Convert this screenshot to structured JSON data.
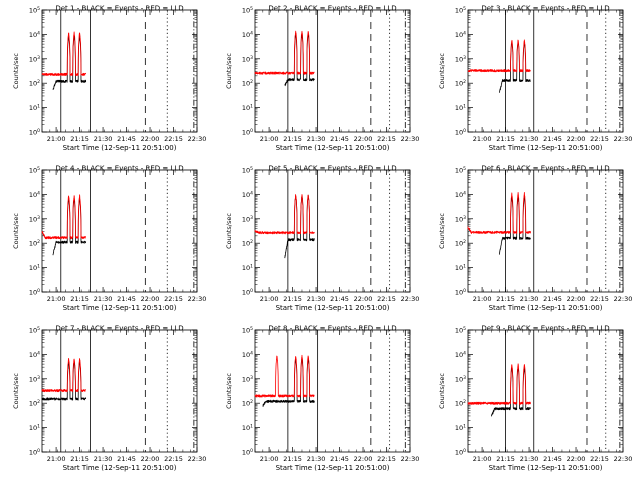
{
  "colors": {
    "events": "#000000",
    "lld": "#ff0000",
    "axes": "#000000",
    "background": "#ffffff"
  },
  "chart_data": [
    {
      "type": "line",
      "detector": 1,
      "title": "Det 1 - BLACK = Events - RED = LLD",
      "xlabel": "Start Time (12-Sep-11 20:51:00)",
      "ylabel": "Counts/sec",
      "x_tick_labels": [
        "21:00",
        "21:15",
        "21:30",
        "21:45",
        "22:00",
        "22:15",
        "22:30"
      ],
      "x_range_minutes": [
        0,
        99
      ],
      "y_scale": "log",
      "ylim": [
        1,
        100000
      ],
      "y_tick_labels": [
        "10^0",
        "10^1",
        "10^2",
        "10^3",
        "10^4",
        "10^5"
      ],
      "vertical_lines": [
        {
          "minute": 12,
          "style": "solid"
        },
        {
          "minute": 31,
          "style": "solid"
        },
        {
          "minute": 66,
          "style": "dashed"
        },
        {
          "minute": 80,
          "style": "dotted"
        },
        {
          "minute": 97,
          "style": "dash-dot"
        }
      ],
      "series": [
        {
          "name": "Events",
          "color": "#000000",
          "start": 7,
          "end": 28,
          "base": 120,
          "first": 55,
          "peaks": [
            17,
            20.5,
            24
          ],
          "peak_height": 9000
        },
        {
          "name": "LLD",
          "color": "#ff0000",
          "start": 0,
          "end": 28,
          "base": 230,
          "first": 230,
          "peaks": [
            17,
            20.5,
            24
          ],
          "peak_height": 12000
        }
      ]
    },
    {
      "type": "line",
      "detector": 2,
      "title": "Det 2 - BLACK = Events - RED = LLD",
      "xlabel": "Start Time (12-Sep-11 20:51:00)",
      "ylabel": "Counts/sec",
      "x_tick_labels": [
        "21:00",
        "21:15",
        "21:30",
        "21:45",
        "22:00",
        "22:15",
        "22:30"
      ],
      "x_range_minutes": [
        0,
        99
      ],
      "y_scale": "log",
      "ylim": [
        1,
        100000
      ],
      "y_tick_labels": [
        "10^0",
        "10^1",
        "10^2",
        "10^3",
        "10^4",
        "10^5"
      ],
      "vertical_lines": [
        {
          "minute": 21,
          "style": "solid"
        },
        {
          "minute": 40,
          "style": "solid"
        },
        {
          "minute": 74,
          "style": "dashed"
        },
        {
          "minute": 86,
          "style": "dotted"
        },
        {
          "minute": 96,
          "style": "dash-dot"
        }
      ],
      "series": [
        {
          "name": "Events",
          "color": "#000000",
          "start": 19,
          "end": 38,
          "base": 140,
          "first": 80,
          "peaks": [
            26,
            30,
            34
          ],
          "peak_height": 11000
        },
        {
          "name": "LLD",
          "color": "#ff0000",
          "start": 0,
          "end": 38,
          "base": 260,
          "first": 260,
          "peaks": [
            26,
            30,
            34
          ],
          "peak_height": 14000
        }
      ]
    },
    {
      "type": "line",
      "detector": 3,
      "title": "Det 3 - BLACK = Events - RED = LLD",
      "xlabel": "Start Time (12-Sep-11 20:51:00)",
      "ylabel": "Counts/sec",
      "x_tick_labels": [
        "21:00",
        "21:15",
        "21:30",
        "21:45",
        "22:00",
        "22:15",
        "22:30"
      ],
      "x_range_minutes": [
        0,
        99
      ],
      "y_scale": "log",
      "ylim": [
        1,
        100000
      ],
      "y_tick_labels": [
        "10^0",
        "10^1",
        "10^2",
        "10^3",
        "10^4",
        "10^5"
      ],
      "vertical_lines": [
        {
          "minute": 24,
          "style": "solid"
        },
        {
          "minute": 42,
          "style": "solid"
        },
        {
          "minute": 76,
          "style": "dashed"
        },
        {
          "minute": 88,
          "style": "dotted"
        },
        {
          "minute": 97,
          "style": "dash-dot"
        }
      ],
      "series": [
        {
          "name": "Events",
          "color": "#000000",
          "start": 20,
          "end": 40,
          "base": 130,
          "first": 40,
          "peaks": [
            28,
            32,
            36
          ],
          "peak_height": 5000
        },
        {
          "name": "LLD",
          "color": "#ff0000",
          "start": 0,
          "end": 40,
          "base": 330,
          "first": 330,
          "peaks": [
            28,
            32,
            36
          ],
          "peak_height": 6000
        }
      ]
    },
    {
      "type": "line",
      "detector": 4,
      "title": "Det 4 - BLACK = Events - RED = LLD",
      "xlabel": "Start Time (12-Sep-11 20:51:00)",
      "ylabel": "Counts/sec",
      "x_tick_labels": [
        "21:00",
        "21:15",
        "21:30",
        "21:45",
        "22:00",
        "22:15",
        "22:30"
      ],
      "x_range_minutes": [
        0,
        99
      ],
      "y_scale": "log",
      "ylim": [
        1,
        100000
      ],
      "y_tick_labels": [
        "10^0",
        "10^1",
        "10^2",
        "10^3",
        "10^4",
        "10^5"
      ],
      "vertical_lines": [
        {
          "minute": 12,
          "style": "solid"
        },
        {
          "minute": 31,
          "style": "solid"
        },
        {
          "minute": 66,
          "style": "dashed"
        },
        {
          "minute": 80,
          "style": "dotted"
        },
        {
          "minute": 97,
          "style": "dash-dot"
        }
      ],
      "series": [
        {
          "name": "Events",
          "color": "#000000",
          "start": 7,
          "end": 28,
          "base": 110,
          "first": 35,
          "peaks": [
            17,
            20.5,
            24
          ],
          "peak_height": 7000
        },
        {
          "name": "LLD",
          "color": "#ff0000",
          "start": 0,
          "end": 28,
          "base": 170,
          "first": 300,
          "peaks": [
            17,
            20.5,
            24
          ],
          "peak_height": 9000
        }
      ]
    },
    {
      "type": "line",
      "detector": 5,
      "title": "Det 5 - BLACK = Events - RED = LLD",
      "xlabel": "Start Time (12-Sep-11 20:51:00)",
      "ylabel": "Counts/sec",
      "x_tick_labels": [
        "21:00",
        "21:15",
        "21:30",
        "21:45",
        "22:00",
        "22:15",
        "22:30"
      ],
      "x_range_minutes": [
        0,
        99
      ],
      "y_scale": "log",
      "ylim": [
        1,
        100000
      ],
      "y_tick_labels": [
        "10^0",
        "10^1",
        "10^2",
        "10^3",
        "10^4",
        "10^5"
      ],
      "vertical_lines": [
        {
          "minute": 21,
          "style": "solid"
        },
        {
          "minute": 40,
          "style": "solid"
        },
        {
          "minute": 74,
          "style": "dashed"
        },
        {
          "minute": 86,
          "style": "dotted"
        },
        {
          "minute": 96,
          "style": "dash-dot"
        }
      ],
      "series": [
        {
          "name": "Events",
          "color": "#000000",
          "start": 19,
          "end": 38,
          "base": 140,
          "first": 25,
          "peaks": [
            26,
            30,
            34
          ],
          "peak_height": 9000
        },
        {
          "name": "LLD",
          "color": "#ff0000",
          "start": 0,
          "end": 38,
          "base": 270,
          "first": 330,
          "peaks": [
            26,
            30,
            34
          ],
          "peak_height": 10000
        }
      ]
    },
    {
      "type": "line",
      "detector": 6,
      "title": "Det 6 - BLACK = Events - RED = LLD",
      "xlabel": "Start Time (12-Sep-11 20:51:00)",
      "ylabel": "Counts/sec",
      "x_tick_labels": [
        "21:00",
        "21:15",
        "21:30",
        "21:45",
        "22:00",
        "22:15",
        "22:30"
      ],
      "x_range_minutes": [
        0,
        99
      ],
      "y_scale": "log",
      "ylim": [
        1,
        100000
      ],
      "y_tick_labels": [
        "10^0",
        "10^1",
        "10^2",
        "10^3",
        "10^4",
        "10^5"
      ],
      "vertical_lines": [
        {
          "minute": 24,
          "style": "solid"
        },
        {
          "minute": 42,
          "style": "solid"
        },
        {
          "minute": 76,
          "style": "dashed"
        },
        {
          "minute": 88,
          "style": "dotted"
        },
        {
          "minute": 97,
          "style": "dash-dot"
        }
      ],
      "series": [
        {
          "name": "Events",
          "color": "#000000",
          "start": 20,
          "end": 40,
          "base": 160,
          "first": 35,
          "peaks": [
            28,
            32,
            36
          ],
          "peak_height": 8000
        },
        {
          "name": "LLD",
          "color": "#ff0000",
          "start": 0,
          "end": 40,
          "base": 280,
          "first": 450,
          "peaks": [
            28,
            32,
            36
          ],
          "peak_height": 11000
        }
      ]
    },
    {
      "type": "line",
      "detector": 7,
      "title": "Det 7 - BLACK = Events - RED = LLD",
      "xlabel": "Start Time (12-Sep-11 20:51:00)",
      "ylabel": "Counts/sec",
      "x_tick_labels": [
        "21:00",
        "21:15",
        "21:30",
        "21:45",
        "22:00",
        "22:15",
        "22:30"
      ],
      "x_range_minutes": [
        0,
        99
      ],
      "y_scale": "log",
      "ylim": [
        1,
        100000
      ],
      "y_tick_labels": [
        "10^0",
        "10^1",
        "10^2",
        "10^3",
        "10^4",
        "10^5"
      ],
      "vertical_lines": [
        {
          "minute": 12,
          "style": "solid"
        },
        {
          "minute": 31,
          "style": "solid"
        },
        {
          "minute": 66,
          "style": "dashed"
        },
        {
          "minute": 80,
          "style": "dotted"
        },
        {
          "minute": 97,
          "style": "dash-dot"
        }
      ],
      "series": [
        {
          "name": "Events",
          "color": "#000000",
          "start": 0,
          "end": 28,
          "base": 150,
          "first": 150,
          "peaks": [
            17,
            20.5,
            24
          ],
          "peak_height": 5000
        },
        {
          "name": "LLD",
          "color": "#ff0000",
          "start": 0,
          "end": 28,
          "base": 330,
          "first": 330,
          "peaks": [
            17,
            20.5,
            24
          ],
          "peak_height": 7000
        }
      ]
    },
    {
      "type": "line",
      "detector": 8,
      "title": "Det 8 - BLACK = Events - RED = LLD",
      "xlabel": "Start Time (12-Sep-11 20:51:00)",
      "ylabel": "Counts/sec",
      "x_tick_labels": [
        "21:00",
        "21:15",
        "21:30",
        "21:45",
        "22:00",
        "22:15",
        "22:30"
      ],
      "x_range_minutes": [
        0,
        99
      ],
      "y_scale": "log",
      "ylim": [
        1,
        100000
      ],
      "y_tick_labels": [
        "10^0",
        "10^1",
        "10^2",
        "10^3",
        "10^4",
        "10^5"
      ],
      "vertical_lines": [
        {
          "minute": 21,
          "style": "solid"
        },
        {
          "minute": 40,
          "style": "solid"
        },
        {
          "minute": 74,
          "style": "dashed"
        },
        {
          "minute": 86,
          "style": "dotted"
        },
        {
          "minute": 96,
          "style": "dash-dot"
        }
      ],
      "series": [
        {
          "name": "Events",
          "color": "#000000",
          "start": 5,
          "end": 38,
          "base": 120,
          "first": 80,
          "peaks": [
            26,
            30,
            34
          ],
          "peak_height": 7000
        },
        {
          "name": "LLD",
          "color": "#ff0000",
          "start": 0,
          "end": 38,
          "base": 200,
          "first": 200,
          "peaks": [
            14,
            26,
            30,
            34
          ],
          "peak_height": 9000
        }
      ]
    },
    {
      "type": "line",
      "detector": 9,
      "title": "Det 9 - BLACK = Events - RED = LLD",
      "xlabel": "Start Time (12-Sep-11 20:51:00)",
      "ylabel": "Counts/sec",
      "x_tick_labels": [
        "21:00",
        "21:15",
        "21:30",
        "21:45",
        "22:00",
        "22:15",
        "22:30"
      ],
      "x_range_minutes": [
        0,
        99
      ],
      "y_scale": "log",
      "ylim": [
        1,
        100000
      ],
      "y_tick_labels": [
        "10^0",
        "10^1",
        "10^2",
        "10^3",
        "10^4",
        "10^5"
      ],
      "vertical_lines": [
        {
          "minute": 24,
          "style": "solid"
        },
        {
          "minute": 42,
          "style": "solid"
        },
        {
          "minute": 76,
          "style": "dashed"
        },
        {
          "minute": 88,
          "style": "dotted"
        },
        {
          "minute": 97,
          "style": "dash-dot"
        }
      ],
      "series": [
        {
          "name": "Events",
          "color": "#000000",
          "start": 15,
          "end": 40,
          "base": 60,
          "first": 30,
          "peaks": [
            28,
            32,
            36
          ],
          "peak_height": 3000
        },
        {
          "name": "LLD",
          "color": "#ff0000",
          "start": 0,
          "end": 40,
          "base": 100,
          "first": 100,
          "peaks": [
            28,
            32,
            36
          ],
          "peak_height": 4000
        }
      ]
    }
  ]
}
